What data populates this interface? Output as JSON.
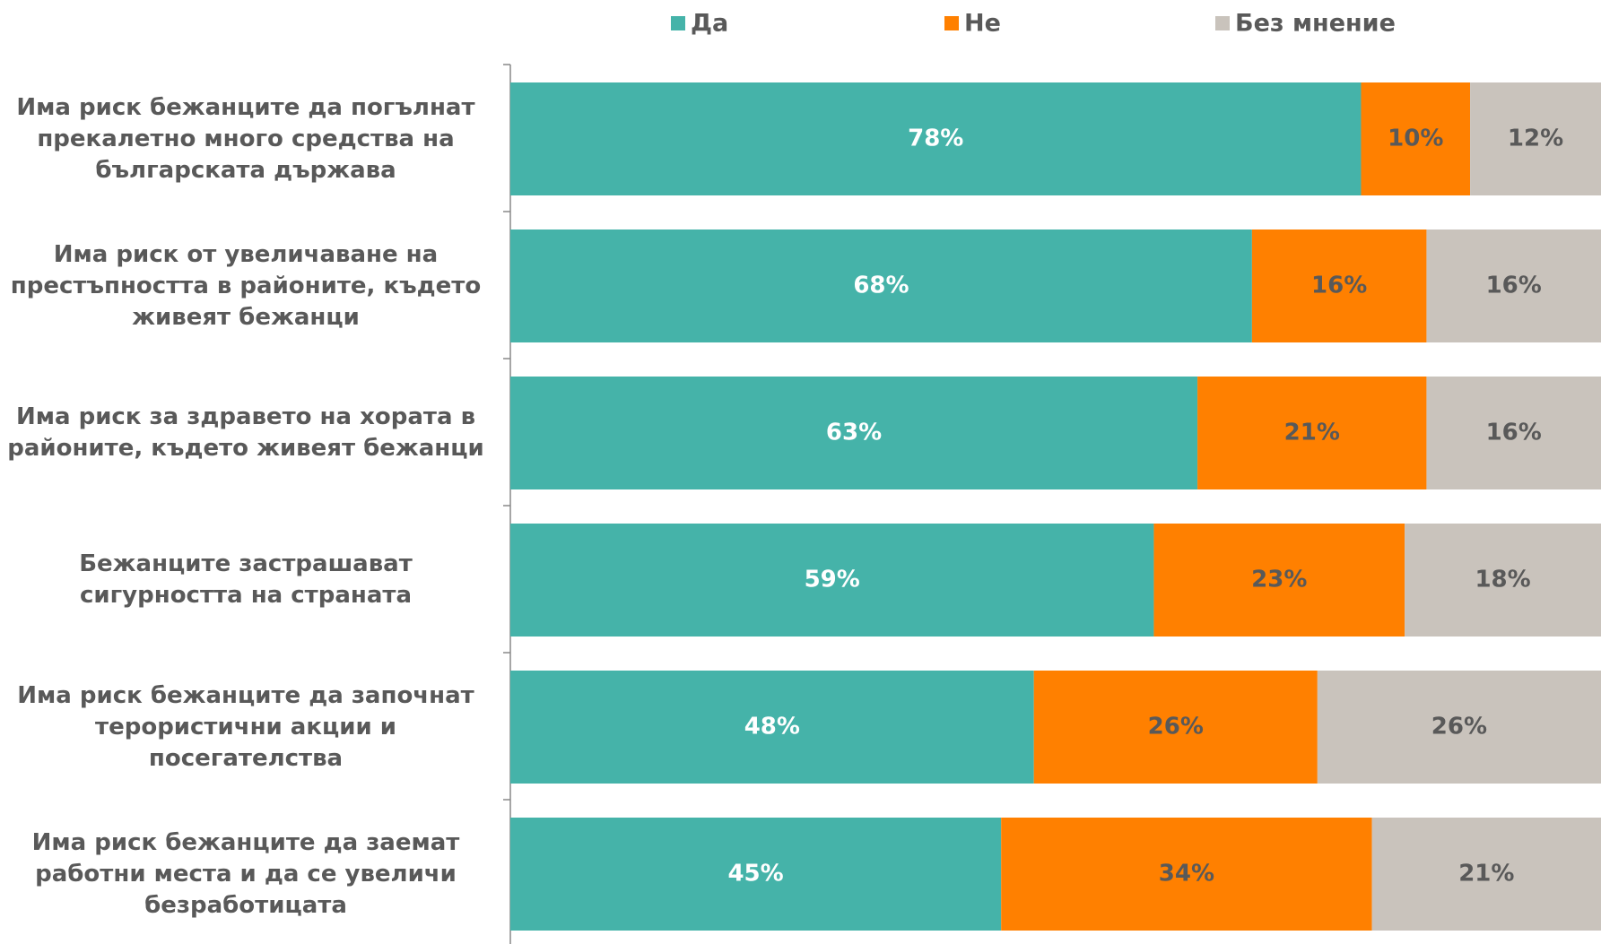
{
  "chart_data": {
    "type": "stacked_barh",
    "categories": [
      "Има риск бежанците да погълнат прекалетно много средства на българската държава",
      "Има риск от увеличаване на престъпността в районите, където живеят бежанци",
      "Има риск за здравето на хората в районите, където живеят бежанци",
      "Бежанците застрашават сигурността на страната",
      "Има риск бежанците да започнат терористични акции и посегателства",
      "Има риск бежанците да заемат работни места и да се увеличи безработицата"
    ],
    "series": [
      {
        "name": "Да",
        "color": "#45b3a9",
        "values": [
          78,
          68,
          63,
          59,
          48,
          45
        ],
        "value_labels": [
          "78%",
          "68%",
          "63%",
          "59%",
          "48%",
          "45%"
        ]
      },
      {
        "name": "Не",
        "color": "#ff8000",
        "values": [
          10,
          16,
          21,
          23,
          26,
          34
        ],
        "value_labels": [
          "10%",
          "16%",
          "21%",
          "23%",
          "26%",
          "34%"
        ]
      },
      {
        "name": "Без мнение",
        "color": "#c9c3bc",
        "values": [
          12,
          16,
          16,
          18,
          26,
          21
        ],
        "value_labels": [
          "12%",
          "16%",
          "16%",
          "18%",
          "26%",
          "21%"
        ]
      }
    ],
    "xlim": [
      0,
      100
    ],
    "legend": "top"
  }
}
